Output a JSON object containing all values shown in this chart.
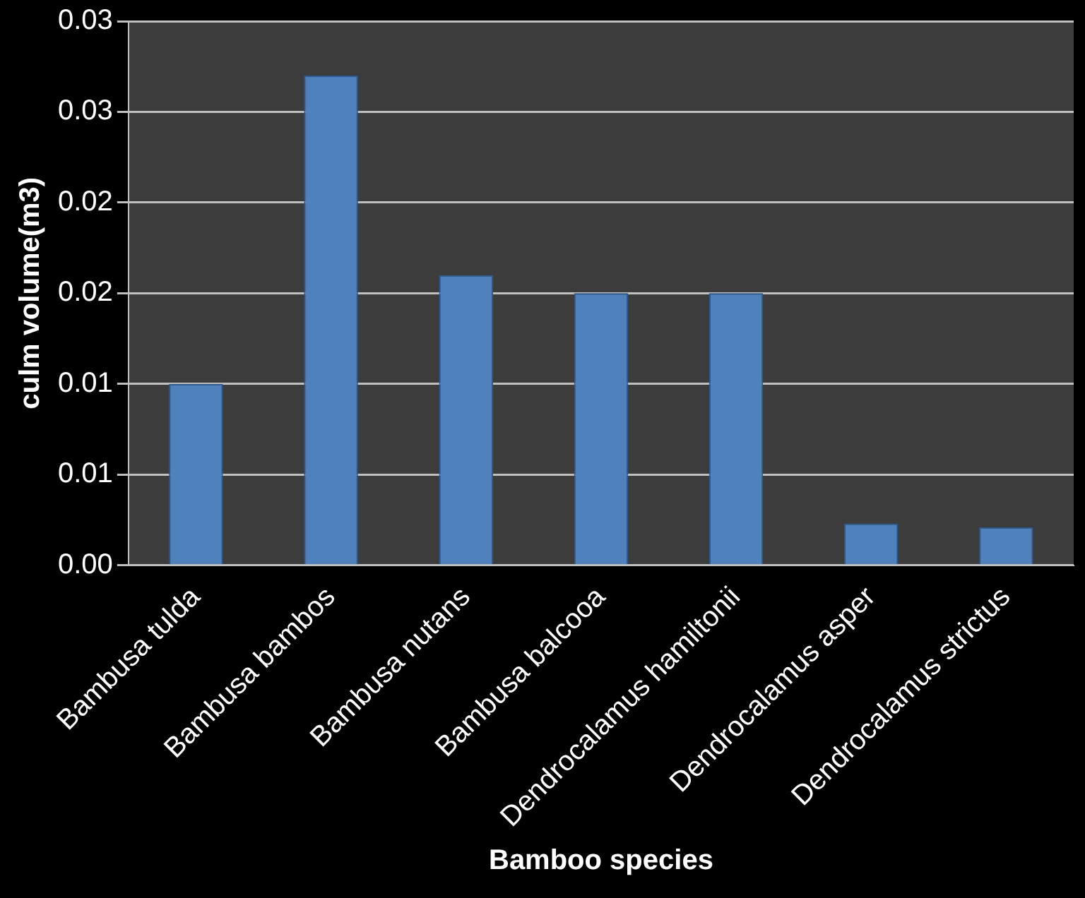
{
  "chart_data": {
    "type": "bar",
    "xlabel": "Bamboo species",
    "ylabel": "culm volume(m3)",
    "categories": [
      "Bambusa tulda",
      "Bambusa bambos",
      "Bambusa nutans",
      "Bambusa balcooa",
      "Dendrocalamus hamiltonii",
      "Dendrocalamus asper",
      "Dendrocalamus strictus"
    ],
    "values": [
      0.01,
      0.027,
      0.016,
      0.015,
      0.015,
      0.0023,
      0.0021
    ],
    "color": "#4f81bd",
    "ylim": [
      0,
      0.03
    ],
    "yticks": [
      {
        "value": 0,
        "label": "0.00"
      },
      {
        "value": 0.005,
        "label": "0.01"
      },
      0.01,
      {
        "value": 0.015,
        "label": "0.02"
      },
      0.02,
      {
        "value": 0.025,
        "label": "0.03"
      },
      0.03
    ],
    "grid": "y",
    "legend": false
  }
}
